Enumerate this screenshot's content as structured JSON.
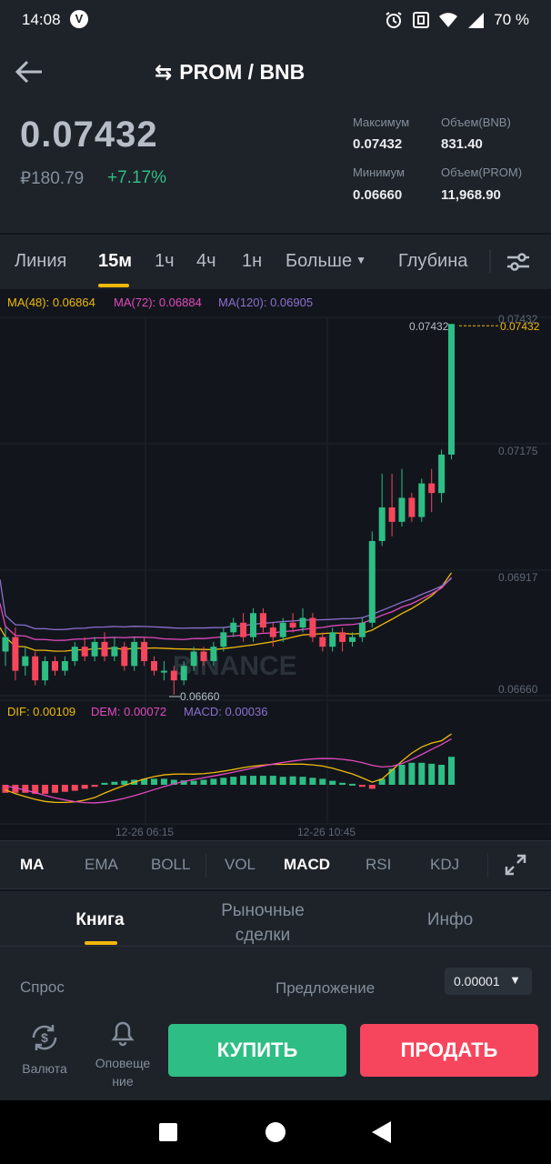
{
  "status_bar": {
    "time": "14:08",
    "vpn_glyph": "V",
    "battery": "70 %",
    "icons": [
      "alarm-icon",
      "nfc-icon",
      "wifi-icon",
      "signal-icon"
    ]
  },
  "header": {
    "pair": "PROM / BNB",
    "swap_glyph": "⇆",
    "last_price": "0.07432",
    "rub_price": "₽180.79",
    "change": "+7.17%",
    "stats": {
      "max_label": "Максимум",
      "max_value": "0.07432",
      "vol_bnb_label": "Объем(BNB)",
      "vol_bnb_value": "831.40",
      "min_label": "Минимум",
      "min_value": "0.06660",
      "vol_prom_label": "Объем(PROM)",
      "vol_prom_value": "11,968.90"
    }
  },
  "timeframes": {
    "items": [
      "Линия",
      "15м",
      "1ч",
      "4ч",
      "1н",
      "Больше",
      "Глубина"
    ],
    "active": "15м"
  },
  "chart_legend": {
    "ma48": "MA(48): 0.06864",
    "ma72": "MA(72): 0.06884",
    "ma120": "MA(120): 0.06905",
    "dif": "DIF: 0.00109",
    "dem": "DEM: 0.00072",
    "macd": "MACD: 0.00036",
    "watermark": "BINANCE"
  },
  "chart_data": {
    "type": "candlestick",
    "y_ticks": [
      "0.07432",
      "0.07175",
      "0.06917",
      "0.06660"
    ],
    "ylim": [
      0.0666,
      0.07432
    ],
    "x_ticks": [
      "12-26 06:15",
      "12-26 10:45"
    ],
    "high_label": "0.07432",
    "low_label": "0.06660",
    "current_price_label": "0.07432",
    "colors": {
      "up": "#2ebd85",
      "down": "#f6465d",
      "ma48": "#f0b90b",
      "ma72": "#e349c0",
      "ma120": "#8d6fd1"
    },
    "candles": [
      [
        0.0675,
        0.0678,
        0.0672,
        0.068
      ],
      [
        0.0678,
        0.0671,
        0.0669,
        0.068
      ],
      [
        0.0672,
        0.0674,
        0.067,
        0.0676
      ],
      [
        0.0674,
        0.0669,
        0.0668,
        0.0675
      ],
      [
        0.0669,
        0.0673,
        0.0668,
        0.0674
      ],
      [
        0.0673,
        0.0671,
        0.067,
        0.0674
      ],
      [
        0.0671,
        0.0673,
        0.067,
        0.0674
      ],
      [
        0.0673,
        0.0676,
        0.0672,
        0.0677
      ],
      [
        0.0676,
        0.0674,
        0.0673,
        0.0678
      ],
      [
        0.0674,
        0.0677,
        0.0673,
        0.0678
      ],
      [
        0.0677,
        0.0674,
        0.0673,
        0.0679
      ],
      [
        0.0674,
        0.0676,
        0.0673,
        0.0678
      ],
      [
        0.0676,
        0.0672,
        0.0671,
        0.0677
      ],
      [
        0.0672,
        0.0677,
        0.0671,
        0.0678
      ],
      [
        0.0677,
        0.0673,
        0.0672,
        0.0678
      ],
      [
        0.0673,
        0.0671,
        0.067,
        0.0674
      ],
      [
        0.0671,
        0.0671,
        0.0669,
        0.0673
      ],
      [
        0.0671,
        0.0669,
        0.0666,
        0.0672
      ],
      [
        0.0669,
        0.0672,
        0.0668,
        0.0673
      ],
      [
        0.0672,
        0.0675,
        0.0671,
        0.0676
      ],
      [
        0.0675,
        0.0673,
        0.0672,
        0.0676
      ],
      [
        0.0673,
        0.0676,
        0.0672,
        0.0677
      ],
      [
        0.0676,
        0.0679,
        0.0675,
        0.068
      ],
      [
        0.0679,
        0.0681,
        0.0678,
        0.0682
      ],
      [
        0.0681,
        0.0678,
        0.0677,
        0.0683
      ],
      [
        0.0678,
        0.0683,
        0.0677,
        0.0684
      ],
      [
        0.0683,
        0.068,
        0.0679,
        0.0684
      ],
      [
        0.068,
        0.0678,
        0.0676,
        0.0681
      ],
      [
        0.0678,
        0.0681,
        0.0677,
        0.0682
      ],
      [
        0.0681,
        0.068,
        0.0679,
        0.0683
      ],
      [
        0.068,
        0.0682,
        0.0679,
        0.0684
      ],
      [
        0.0682,
        0.0678,
        0.0677,
        0.0683
      ],
      [
        0.0678,
        0.0676,
        0.0675,
        0.0679
      ],
      [
        0.0676,
        0.0679,
        0.0675,
        0.068
      ],
      [
        0.0679,
        0.0677,
        0.0675,
        0.068
      ],
      [
        0.0677,
        0.0678,
        0.0676,
        0.0679
      ],
      [
        0.0678,
        0.0681,
        0.0677,
        0.0682
      ],
      [
        0.0681,
        0.0698,
        0.068,
        0.07
      ],
      [
        0.0698,
        0.0705,
        0.0697,
        0.0712
      ],
      [
        0.0705,
        0.0702,
        0.0699,
        0.0712
      ],
      [
        0.0702,
        0.0707,
        0.0701,
        0.0713
      ],
      [
        0.0707,
        0.0703,
        0.0702,
        0.0708
      ],
      [
        0.0703,
        0.071,
        0.0702,
        0.0711
      ],
      [
        0.071,
        0.0708,
        0.0704,
        0.0713
      ],
      [
        0.0708,
        0.0716,
        0.0706,
        0.0717
      ],
      [
        0.0716,
        0.07432,
        0.0715,
        0.07432
      ]
    ],
    "macd_hist": [
      -0.4,
      -0.4,
      -0.4,
      -0.45,
      -0.45,
      -0.4,
      -0.35,
      -0.3,
      -0.2,
      -0.1,
      0.1,
      0.15,
      0.2,
      0.25,
      0.3,
      0.3,
      0.3,
      0.25,
      0.22,
      0.2,
      0.25,
      0.3,
      0.35,
      0.4,
      0.45,
      0.45,
      0.45,
      0.45,
      0.4,
      0.42,
      0.4,
      0.35,
      0.3,
      0.2,
      0.1,
      0.05,
      -0.1,
      -0.2,
      0.3,
      0.8,
      1.0,
      1.1,
      1.1,
      1.05,
      1.0,
      1.4
    ]
  },
  "indicators": {
    "items": [
      "MA",
      "EMA",
      "BOLL",
      "VOL",
      "MACD",
      "RSI",
      "KDJ"
    ]
  },
  "book_tabs": {
    "book": "Книга",
    "trades_line1": "Рыночные",
    "trades_line2": "сделки",
    "info": "Инфо"
  },
  "order_book": {
    "bid_label": "Спрос",
    "ask_label": "Предложение",
    "precision": "0.00001"
  },
  "actions": {
    "currency": "Валюта",
    "alerts_line1": "Оповеще",
    "alerts_line2": "ние",
    "buy": "КУПИТЬ",
    "sell": "ПРОДАТЬ"
  }
}
